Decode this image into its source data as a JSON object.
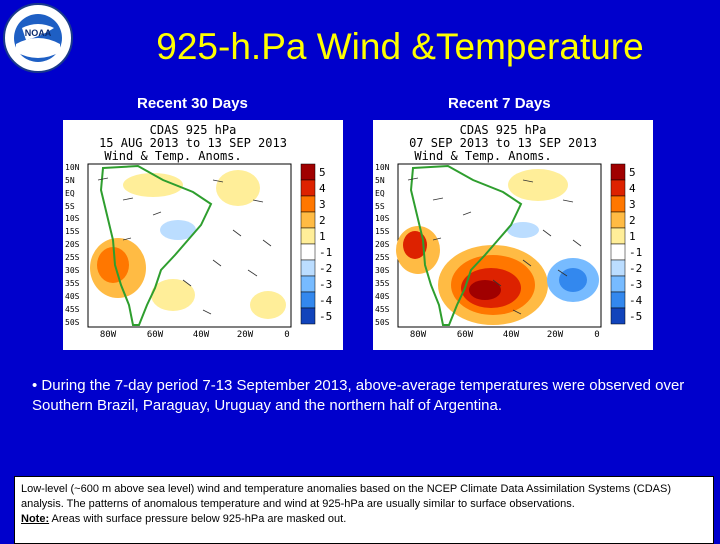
{
  "header": {
    "logo_text": "NOAA",
    "title": "925-h.Pa Wind &Temperature"
  },
  "panels": [
    {
      "label": "Recent 30 Days",
      "map_title_1": "CDAS 925 hPa",
      "map_title_2": "15 AUG 2013 to 13 SEP 2013",
      "map_title_3": "Wind & Temp. Anoms."
    },
    {
      "label": "Recent 7 Days",
      "map_title_1": "CDAS 925 hPa",
      "map_title_2": "07 SEP 2013 to 13 SEP 2013",
      "map_title_3": "Wind & Temp. Anoms."
    }
  ],
  "lat_labels": [
    "10N",
    "5N",
    "EQ",
    "5S",
    "10S",
    "15S",
    "20S",
    "25S",
    "30S",
    "35S",
    "40S",
    "45S",
    "50S"
  ],
  "lon_labels": [
    "80W",
    "60W",
    "40W",
    "20W",
    "0"
  ],
  "colorbar": {
    "labels": [
      "5",
      "4",
      "3",
      "2",
      "1",
      "-1",
      "-2",
      "-3",
      "-4",
      "-5"
    ],
    "colors": [
      "#a00000",
      "#dd2200",
      "#ff7700",
      "#ffbb44",
      "#ffee99",
      "#ffffff",
      "#bbddff",
      "#77bbff",
      "#3388ee",
      "#1144bb"
    ]
  },
  "bullet_text": "• During the 7-day period 7-13 September 2013, above-average temperatures were observed over Southern Brazil, Paraguay, Uruguay and the northern half of Argentina.",
  "note": {
    "body": "Low-level (~600 m above sea level) wind and temperature anomalies based on the NCEP Climate Data Assimilation Systems (CDAS) analysis. The patterns of anomalous temperature and wind at 925-hPa are usually similar to surface observations.",
    "label": "Note:",
    "text": " Areas with surface pressure below 925-hPa are masked out."
  }
}
